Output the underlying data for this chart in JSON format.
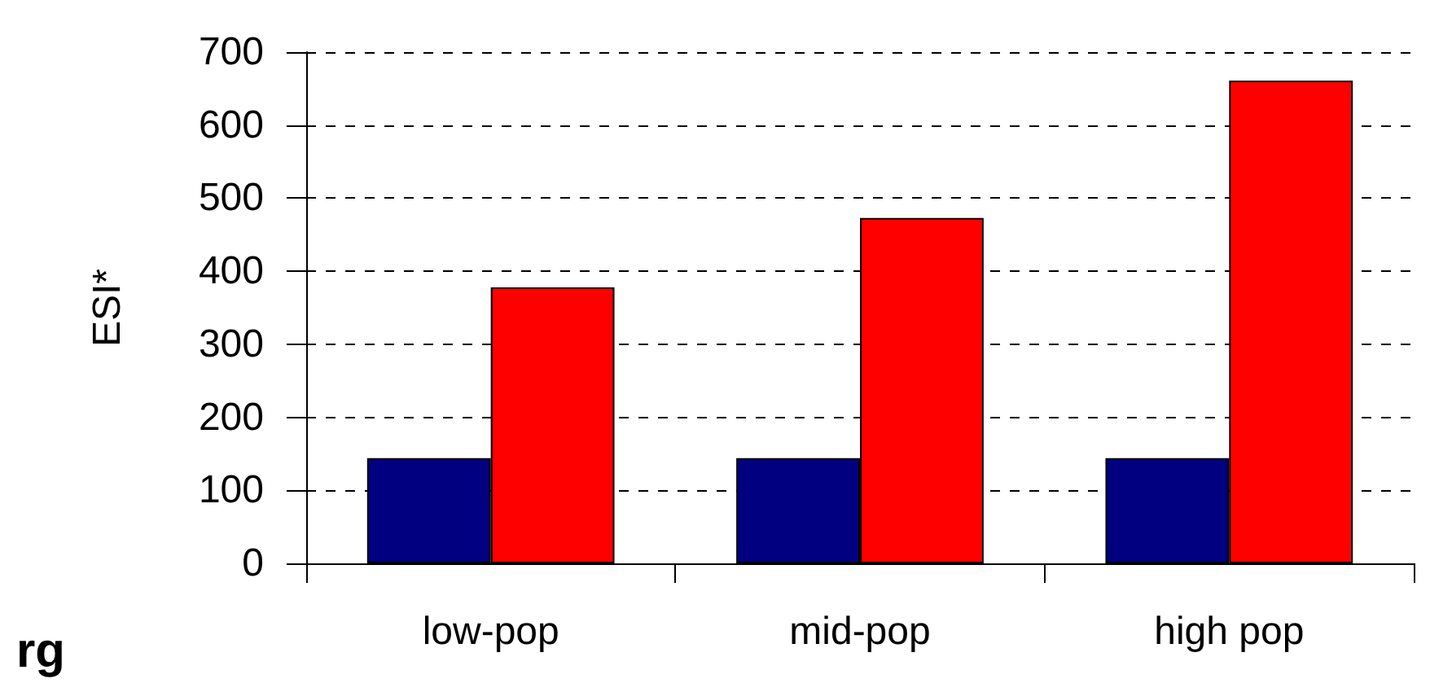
{
  "chart_data": {
    "type": "bar",
    "ylabel": "ESI*",
    "categories": [
      "low-pop",
      "mid-pop",
      "high pop"
    ],
    "series": [
      {
        "color": "#000080",
        "values": [
          144,
          144,
          144
        ]
      },
      {
        "color": "#ff0000",
        "values": [
          378,
          473,
          661
        ]
      }
    ],
    "ylim": [
      0,
      700
    ],
    "yticks": [
      0,
      100,
      200,
      300,
      400,
      500,
      600,
      700
    ],
    "grid": "y",
    "annotations": [
      "rg"
    ]
  }
}
